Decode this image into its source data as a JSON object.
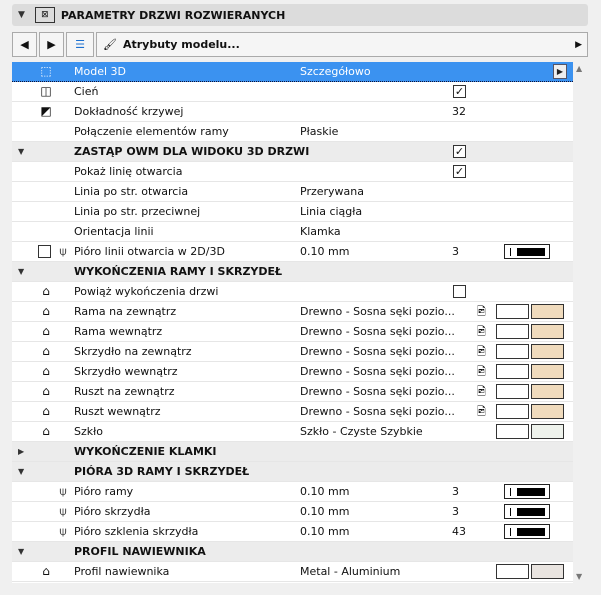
{
  "header": {
    "title": "PARAMETRY DRZWI ROZWIERANYCH",
    "icon": "door-settings-icon"
  },
  "toolbar": {
    "model_attributes_label": "Atrybuty modelu..."
  },
  "colors": {
    "selection": "#3b92f0",
    "wood": "#f0dbbd",
    "glass": "#eef2ec",
    "metal": "#e9e4e0"
  },
  "rows": [
    {
      "type": "item",
      "icon": "3d-cube-icon",
      "label": "Model 3D",
      "value": "Szczegółowo",
      "selected": true,
      "arrow": true
    },
    {
      "type": "item",
      "icon": "shadow-cube-icon",
      "label": "Cień",
      "check": true
    },
    {
      "type": "item",
      "icon": "curve-accuracy-icon",
      "label": "Dokładność krzywej",
      "extra": "32"
    },
    {
      "type": "item",
      "label": "Połączenie elementów ramy",
      "value": "Płaskie"
    },
    {
      "type": "group",
      "expanded": true,
      "label": "ZASTĄP OWM DLA WIDOKU 3D DRZWI",
      "check": true
    },
    {
      "type": "item",
      "label": "Pokaż linię otwarcia",
      "check": true
    },
    {
      "type": "item",
      "label": "Linia po str. otwarcia",
      "value": "Przerywana"
    },
    {
      "type": "item",
      "label": "Linia po str. przeciwnej",
      "value": "Linia ciągła"
    },
    {
      "type": "item",
      "label": "Orientacja linii",
      "value": "Klamka"
    },
    {
      "type": "item",
      "leftcheck": false,
      "icon2": "pen-icon",
      "label": "Pióro linii otwarcia w 2D/3D",
      "value": "0.10 mm",
      "extra": "3",
      "pen": true
    },
    {
      "type": "group",
      "expanded": true,
      "label": "WYKOŃCZENIA RAMY I SKRZYDEŁ"
    },
    {
      "type": "item",
      "icon": "paint-brush-icon",
      "label": "Powiąż wykończenia drzwi",
      "check": false
    },
    {
      "type": "item",
      "icon": "paint-brush-icon",
      "label": "Rama na zewnątrz",
      "value": "Drewno - Sosna sęki pozio...",
      "mat": true,
      "swatch": "#f0dbbd"
    },
    {
      "type": "item",
      "icon": "paint-brush-icon",
      "label": "Rama wewnątrz",
      "value": "Drewno - Sosna sęki pozio...",
      "mat": true,
      "swatch": "#f0dbbd"
    },
    {
      "type": "item",
      "icon": "paint-brush-icon",
      "label": "Skrzydło na zewnątrz",
      "value": "Drewno - Sosna sęki pozio...",
      "mat": true,
      "swatch": "#f0dbbd"
    },
    {
      "type": "item",
      "icon": "paint-brush-icon",
      "label": "Skrzydło wewnątrz",
      "value": "Drewno - Sosna sęki pozio...",
      "mat": true,
      "swatch": "#f0dbbd"
    },
    {
      "type": "item",
      "icon": "paint-brush-icon",
      "label": "Ruszt na zewnątrz",
      "value": "Drewno - Sosna sęki pozio...",
      "mat": true,
      "swatch": "#f0dbbd"
    },
    {
      "type": "item",
      "icon": "paint-brush-icon",
      "label": "Ruszt wewnątrz",
      "value": "Drewno - Sosna sęki pozio...",
      "mat": true,
      "swatch": "#f0dbbd"
    },
    {
      "type": "item",
      "icon": "paint-brush-icon",
      "label": "Szkło",
      "value": "Szkło - Czyste Szybkie",
      "swatch": "#eef2ec"
    },
    {
      "type": "group",
      "expanded": false,
      "label": "WYKOŃCZENIE KLAMKI"
    },
    {
      "type": "group",
      "expanded": true,
      "label": "PIÓRA 3D RAMY I SKRZYDEŁ"
    },
    {
      "type": "item",
      "icon2": "pen-icon",
      "label": "Pióro ramy",
      "value": "0.10 mm",
      "extra": "3",
      "pen": true
    },
    {
      "type": "item",
      "icon2": "pen-icon",
      "label": "Pióro skrzydła",
      "value": "0.10 mm",
      "extra": "3",
      "pen": true
    },
    {
      "type": "item",
      "icon2": "pen-icon",
      "label": "Pióro szklenia skrzydła",
      "value": "0.10 mm",
      "extra": "43",
      "pen": true
    },
    {
      "type": "group",
      "expanded": true,
      "label": "PROFIL NAWIEWNIKA"
    },
    {
      "type": "item",
      "icon": "paint-brush-icon",
      "label": "Profil nawiewnika",
      "value": "Metal - Aluminium",
      "swatch": "#e9e4e0"
    }
  ]
}
